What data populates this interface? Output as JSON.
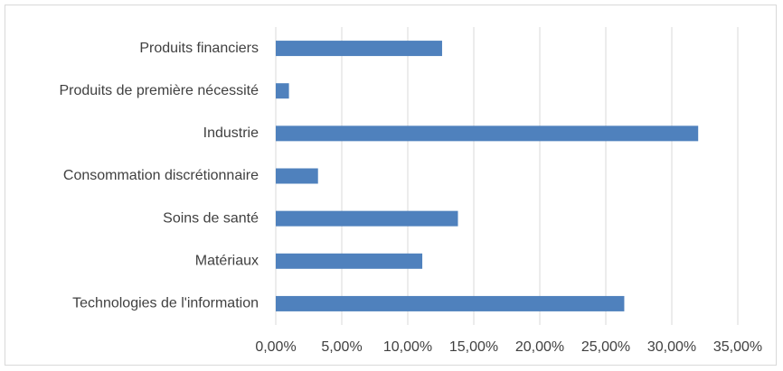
{
  "chart_data": {
    "type": "bar",
    "orientation": "horizontal",
    "categories": [
      "Produits financiers",
      "Produits de première nécessité",
      "Industrie",
      "Consommation discrétionnaire",
      "Soins de santé",
      "Matériaux",
      "Technologies de l'information"
    ],
    "values": [
      12.6,
      1.0,
      32.0,
      3.2,
      13.8,
      11.1,
      26.4
    ],
    "value_unit": "%",
    "xlim": [
      0,
      35
    ],
    "x_ticks": [
      0,
      5,
      10,
      15,
      20,
      25,
      30,
      35
    ],
    "x_tick_labels": [
      "0,00%",
      "5,00%",
      "10,00%",
      "15,00%",
      "20,00%",
      "25,00%",
      "30,00%",
      "35,00%"
    ],
    "grid": "vertical",
    "legend": "none",
    "bar_color": "#4f81bd",
    "grid_color": "#d9d9d9",
    "text_color": "#404040"
  }
}
